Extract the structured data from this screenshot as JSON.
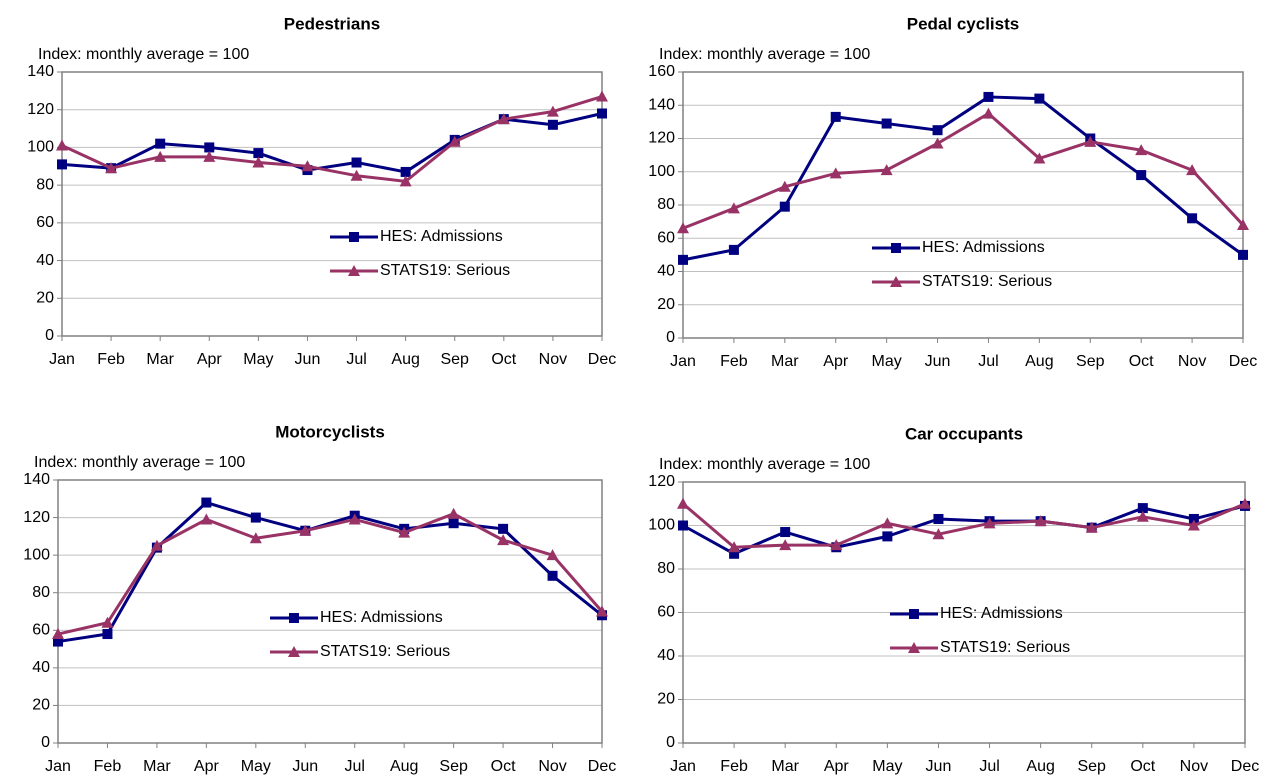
{
  "chart_data": [
    {
      "type": "line",
      "title": "Pedestrians",
      "subtitle": "Index: monthly average = 100",
      "categories": [
        "Jan",
        "Feb",
        "Mar",
        "Apr",
        "May",
        "Jun",
        "Jul",
        "Aug",
        "Sep",
        "Oct",
        "Nov",
        "Dec"
      ],
      "series": [
        {
          "name": "HES: Admissions",
          "color": "#000080",
          "marker": "square",
          "values": [
            91,
            89,
            102,
            100,
            97,
            88,
            92,
            87,
            104,
            115,
            112,
            118
          ]
        },
        {
          "name": "STATS19: Serious",
          "color": "#993366",
          "marker": "triangle",
          "values": [
            101,
            89,
            95,
            95,
            92,
            90,
            85,
            82,
            103,
            115,
            119,
            127
          ]
        }
      ],
      "ylim": [
        0,
        140
      ],
      "yticks": [
        0,
        20,
        40,
        60,
        80,
        100,
        120,
        140
      ],
      "grid": true
    },
    {
      "type": "line",
      "title": "Pedal cyclists",
      "subtitle": "Index: monthly average = 100",
      "categories": [
        "Jan",
        "Feb",
        "Mar",
        "Apr",
        "May",
        "Jun",
        "Jul",
        "Aug",
        "Sep",
        "Oct",
        "Nov",
        "Dec"
      ],
      "series": [
        {
          "name": "HES: Admissions",
          "color": "#000080",
          "marker": "square",
          "values": [
            47,
            53,
            79,
            133,
            129,
            125,
            145,
            144,
            120,
            98,
            72,
            50
          ]
        },
        {
          "name": "STATS19: Serious",
          "color": "#993366",
          "marker": "triangle",
          "values": [
            66,
            78,
            91,
            99,
            101,
            117,
            135,
            108,
            118,
            113,
            101,
            68
          ]
        }
      ],
      "ylim": [
        0,
        160
      ],
      "yticks": [
        0,
        20,
        40,
        60,
        80,
        100,
        120,
        140,
        160
      ],
      "grid": true
    },
    {
      "type": "line",
      "title": "Motorcyclists",
      "subtitle": "Index: monthly average = 100",
      "categories": [
        "Jan",
        "Feb",
        "Mar",
        "Apr",
        "May",
        "Jun",
        "Jul",
        "Aug",
        "Sep",
        "Oct",
        "Nov",
        "Dec"
      ],
      "series": [
        {
          "name": "HES: Admissions",
          "color": "#000080",
          "marker": "square",
          "values": [
            54,
            58,
            104,
            128,
            120,
            113,
            121,
            114,
            117,
            114,
            89,
            68
          ]
        },
        {
          "name": "STATS19: Serious",
          "color": "#993366",
          "marker": "triangle",
          "values": [
            58,
            64,
            105,
            119,
            109,
            113,
            119,
            112,
            122,
            108,
            100,
            70
          ]
        }
      ],
      "ylim": [
        0,
        140
      ],
      "yticks": [
        0,
        20,
        40,
        60,
        80,
        100,
        120,
        140
      ],
      "grid": true
    },
    {
      "type": "line",
      "title": "Car occupants",
      "subtitle": "Index: monthly average = 100",
      "categories": [
        "Jan",
        "Feb",
        "Mar",
        "Apr",
        "May",
        "Jun",
        "Jul",
        "Aug",
        "Sep",
        "Oct",
        "Nov",
        "Dec"
      ],
      "series": [
        {
          "name": "HES: Admissions",
          "color": "#000080",
          "marker": "square",
          "values": [
            100,
            87,
            97,
            90,
            95,
            103,
            102,
            102,
            99,
            108,
            103,
            109
          ]
        },
        {
          "name": "STATS19: Serious",
          "color": "#993366",
          "marker": "triangle",
          "values": [
            110,
            90,
            91,
            91,
            101,
            96,
            101,
            102,
            99,
            104,
            100,
            110
          ]
        }
      ],
      "ylim": [
        0,
        120
      ],
      "yticks": [
        0,
        20,
        40,
        60,
        80,
        100,
        120
      ],
      "grid": true
    }
  ]
}
